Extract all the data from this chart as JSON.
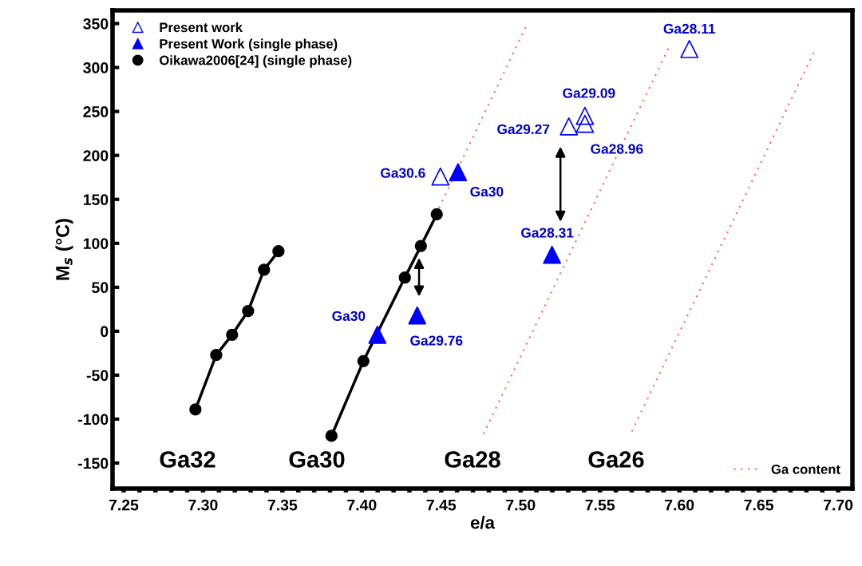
{
  "chart_data": {
    "type": "scatter",
    "xlabel": "e/a",
    "ylabel": "M$_{s}$ (°C)",
    "xlim": [
      7.243,
      7.709
    ],
    "ylim": [
      -179,
      365
    ],
    "xticks": [
      7.25,
      {
        "value": 7.26,
        "label": null
      },
      {
        "value": 7.27,
        "label": null
      },
      {
        "value": 7.28,
        "label": null
      },
      {
        "value": 7.29,
        "label": null
      },
      {
        "value": 7.3,
        "label": "7.30"
      },
      {
        "value": 7.31,
        "label": null
      },
      {
        "value": 7.32,
        "label": null
      },
      {
        "value": 7.33,
        "label": null
      },
      {
        "value": 7.34,
        "label": null
      },
      7.35,
      {
        "value": 7.36,
        "label": null
      },
      {
        "value": 7.37,
        "label": null
      },
      {
        "value": 7.38,
        "label": null
      },
      {
        "value": 7.39,
        "label": null
      },
      {
        "value": 7.4,
        "label": "7.40"
      },
      {
        "value": 7.41,
        "label": null
      },
      {
        "value": 7.42,
        "label": null
      },
      {
        "value": 7.43,
        "label": null
      },
      {
        "value": 7.44,
        "label": null
      },
      7.45,
      {
        "value": 7.46,
        "label": null
      },
      {
        "value": 7.47,
        "label": null
      },
      {
        "value": 7.48,
        "label": null
      },
      {
        "value": 7.49,
        "label": null
      },
      {
        "value": 7.5,
        "label": "7.50"
      },
      {
        "value": 7.51,
        "label": null
      },
      {
        "value": 7.52,
        "label": null
      },
      {
        "value": 7.53,
        "label": null
      },
      {
        "value": 7.54,
        "label": null
      },
      7.55,
      {
        "value": 7.56,
        "label": null
      },
      {
        "value": 7.57,
        "label": null
      },
      {
        "value": 7.58,
        "label": null
      },
      {
        "value": 7.59,
        "label": null
      },
      {
        "value": 7.6,
        "label": "7.60"
      },
      {
        "value": 7.61,
        "label": null
      },
      {
        "value": 7.62,
        "label": null
      },
      {
        "value": 7.63,
        "label": null
      },
      {
        "value": 7.64,
        "label": null
      },
      7.65,
      {
        "value": 7.66,
        "label": null
      },
      {
        "value": 7.67,
        "label": null
      },
      {
        "value": 7.68,
        "label": null
      },
      {
        "value": 7.69,
        "label": null
      },
      {
        "value": 7.7,
        "label": "7.70"
      }
    ],
    "yticks": [
      -150,
      -100,
      -50,
      0,
      50,
      100,
      150,
      200,
      250,
      300,
      350
    ],
    "grid": false,
    "legend": "top left",
    "series": [
      {
        "name": "Present work",
        "type": "scatter",
        "marker": "triangle-open",
        "color": "#0000ff",
        "x": [
          7.4495,
          7.5304,
          7.5405,
          7.5405,
          7.6063
        ],
        "values": [
          176,
          233,
          245,
          236,
          321
        ]
      },
      {
        "name": "Present Work (single phase)",
        "type": "scatter",
        "marker": "triangle",
        "color": "#0000ff",
        "x": [
          7.4606,
          7.5198,
          7.4098,
          7.4349
        ],
        "values": [
          181,
          87,
          -4,
          18
        ]
      },
      {
        "name": "Oikawa2006[24] (single phase)",
        "type": "line",
        "marker": "circle",
        "line_style": "solid",
        "color": "#000000",
        "x": [
          7.2952,
          7.3083,
          7.3183,
          7.3284,
          7.3384,
          7.3475,
          null,
          7.3809,
          7.401,
          7.4271,
          7.4372,
          7.4472
        ],
        "values": [
          -89,
          -27,
          -4,
          23,
          70,
          91,
          null,
          -119,
          -34,
          61,
          97,
          133
        ]
      },
      {
        "name": "Ga content",
        "type": "line",
        "marker": "none",
        "line_style": "dotted",
        "color": "#ff7070",
        "x": [
          7.4467,
          7.5035,
          null,
          7.4766,
          7.5942,
          null,
          7.5701,
          7.6852
        ],
        "values": [
          133,
          347,
          null,
          -117,
          326,
          null,
          -114,
          319
        ]
      }
    ],
    "annotations": [
      {
        "text": "Ga30.6",
        "x": 7.4495,
        "y": 176
      },
      {
        "text": "Ga30",
        "x": 7.4606,
        "y": 181
      },
      {
        "text": "Ga29.27",
        "x": 7.5304,
        "y": 233
      },
      {
        "text": "Ga29.09",
        "x": 7.5405,
        "y": 245
      },
      {
        "text": "Ga28.96",
        "x": 7.5405,
        "y": 236
      },
      {
        "text": "Ga28.11",
        "x": 7.6063,
        "y": 321
      },
      {
        "text": "Ga28.31",
        "x": 7.5198,
        "y": 87
      },
      {
        "text": "Ga30",
        "x": 7.4098,
        "y": -4
      },
      {
        "text": "Ga29.76",
        "x": 7.4349,
        "y": 18
      },
      "Ga32",
      "Ga30",
      "Ga28",
      "Ga26"
    ]
  }
}
